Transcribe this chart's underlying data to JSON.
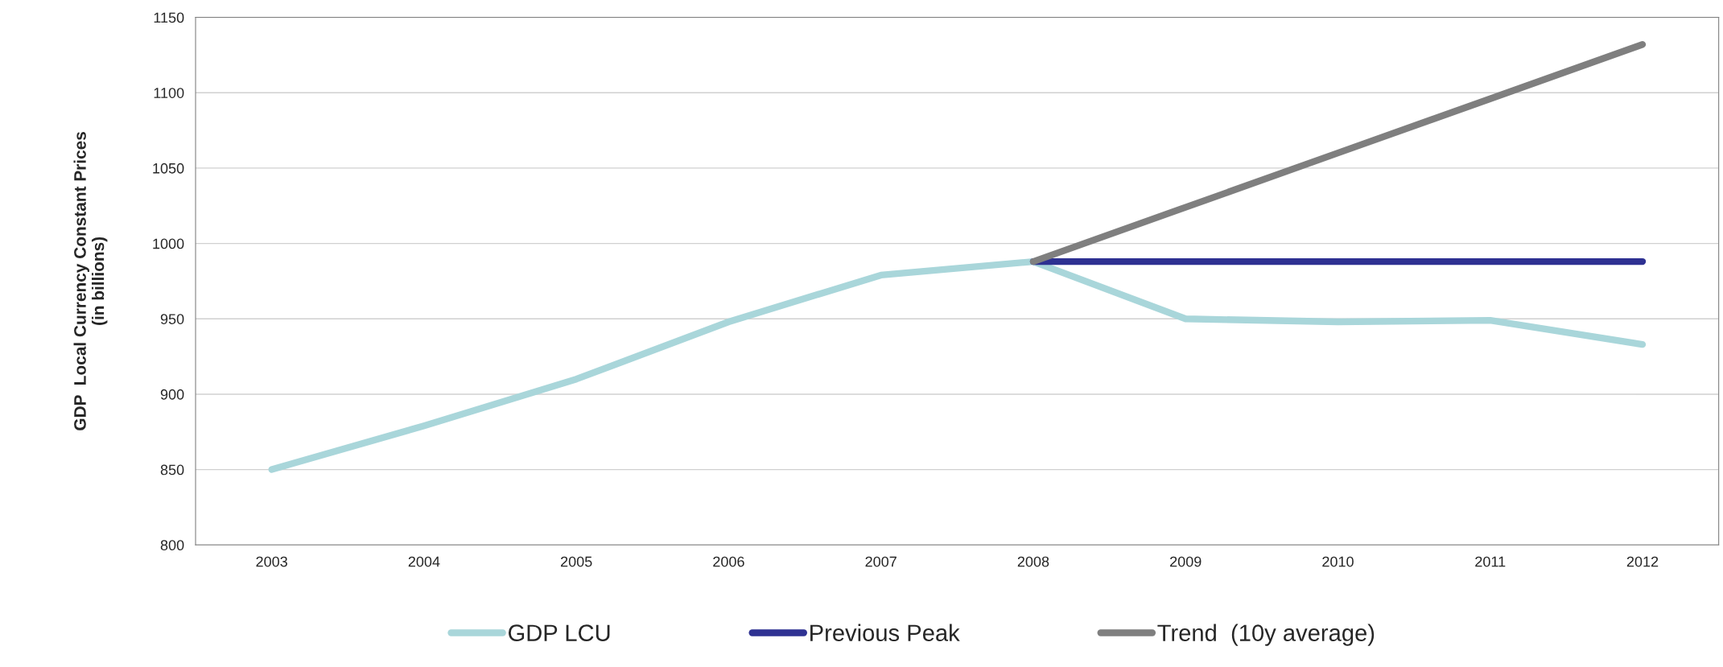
{
  "chart_data": {
    "type": "line",
    "ylabel": "GDP  Local Currency Constant Prices\n(in billions)",
    "categories": [
      "2003",
      "2004",
      "2005",
      "2006",
      "2007",
      "2008",
      "2009",
      "2010",
      "2011",
      "2012"
    ],
    "series": [
      {
        "name": "GDP LCU",
        "color": "#a9d6da",
        "values": [
          850,
          879,
          910,
          948,
          979,
          988,
          950,
          948,
          949,
          933
        ]
      },
      {
        "name": "Previous Peak",
        "color": "#2e3192",
        "values": [
          null,
          null,
          null,
          null,
          null,
          988,
          988,
          988,
          988,
          988
        ]
      },
      {
        "name": "Trend  (10y average)",
        "color": "#7f7f7f",
        "values": [
          null,
          null,
          null,
          null,
          null,
          988,
          1024,
          1060,
          1096,
          1132
        ]
      }
    ],
    "ylim": [
      800,
      1150
    ],
    "yticks": [
      800,
      850,
      900,
      950,
      1000,
      1050,
      1100,
      1150
    ],
    "grid": "y",
    "legend": "bottom",
    "marker": "none",
    "line_style": "solid"
  }
}
